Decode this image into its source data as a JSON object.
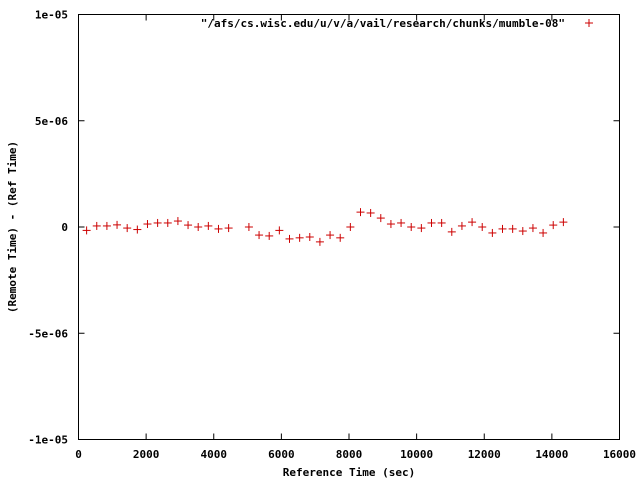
{
  "chart_data": {
    "type": "scatter",
    "xlabel": "Reference Time (sec)",
    "ylabel": "(Remote Time) - (Ref Time)",
    "xlim": [
      0,
      16000
    ],
    "ylim": [
      -1e-05,
      1e-05
    ],
    "x_ticks": [
      0,
      2000,
      4000,
      6000,
      8000,
      10000,
      12000,
      14000,
      16000
    ],
    "x_tick_labels": [
      "0",
      "2000",
      "4000",
      "6000",
      "8000",
      "10000",
      "12000",
      "14000",
      "16000"
    ],
    "y_ticks": [
      -1e-05,
      -5e-06,
      0,
      5e-06,
      1e-05
    ],
    "y_tick_labels": [
      "-1e-05",
      "-5e-06",
      "0",
      "5e-06",
      "1e-05"
    ],
    "legend_position": "top-right",
    "grid": false,
    "series": [
      {
        "name": "\"/afs/cs.wisc.edu/u/v/a/vail/research/chunks/mumble-08\"",
        "color": "#cc0000",
        "marker": "plus",
        "x": [
          240,
          540,
          840,
          1140,
          1440,
          1740,
          2040,
          2340,
          2640,
          2940,
          3240,
          3540,
          3840,
          4140,
          4440,
          5040,
          5340,
          5640,
          5940,
          6240,
          6540,
          6840,
          7140,
          7440,
          7740,
          8040,
          8340,
          8640,
          8940,
          9240,
          9540,
          9840,
          10140,
          10440,
          10740,
          11040,
          11340,
          11640,
          11940,
          12240,
          12540,
          12840,
          13140,
          13440,
          13740,
          14040,
          14340
        ],
        "y": [
          -1.6e-07,
          5e-08,
          5e-08,
          1e-07,
          -5e-08,
          -1.2e-07,
          1.4e-07,
          1.9e-07,
          1.9e-07,
          2.8e-07,
          9e-08,
          0,
          5e-08,
          -9e-08,
          -5e-08,
          0,
          -3.8e-07,
          -4.2e-07,
          -1.6e-07,
          -5.6e-07,
          -5.1e-07,
          -4.7e-07,
          -7e-07,
          -3.8e-07,
          -5.1e-07,
          0,
          7e-07,
          6.6e-07,
          4.2e-07,
          1.4e-07,
          1.9e-07,
          0,
          -5e-08,
          1.9e-07,
          1.9e-07,
          -2.3e-07,
          5e-08,
          2.3e-07,
          0,
          -2.8e-07,
          -9e-08,
          -9e-08,
          -1.9e-07,
          -5e-08,
          -2.8e-07,
          9e-08,
          2.3e-07
        ]
      }
    ]
  }
}
